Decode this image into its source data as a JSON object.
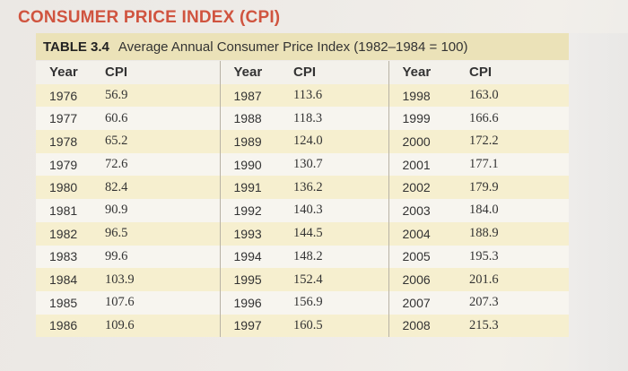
{
  "title": "CONSUMER PRICE INDEX (CPI)",
  "table": {
    "label": "TABLE 3.4",
    "caption": "Average Annual Consumer Price Index (1982–1984 = 100)",
    "headers": [
      "Year",
      "CPI",
      "Year",
      "CPI",
      "Year",
      "CPI"
    ],
    "rows": [
      [
        "1976",
        "56.9",
        "1987",
        "113.6",
        "1998",
        "163.0"
      ],
      [
        "1977",
        "60.6",
        "1988",
        "118.3",
        "1999",
        "166.6"
      ],
      [
        "1978",
        "65.2",
        "1989",
        "124.0",
        "2000",
        "172.2"
      ],
      [
        "1979",
        "72.6",
        "1990",
        "130.7",
        "2001",
        "177.1"
      ],
      [
        "1980",
        "82.4",
        "1991",
        "136.2",
        "2002",
        "179.9"
      ],
      [
        "1981",
        "90.9",
        "1992",
        "140.3",
        "2003",
        "184.0"
      ],
      [
        "1982",
        "96.5",
        "1993",
        "144.5",
        "2004",
        "188.9"
      ],
      [
        "1983",
        "99.6",
        "1994",
        "148.2",
        "2005",
        "195.3"
      ],
      [
        "1984",
        "103.9",
        "1995",
        "152.4",
        "2006",
        "201.6"
      ],
      [
        "1985",
        "107.6",
        "1996",
        "156.9",
        "2007",
        "207.3"
      ],
      [
        "1986",
        "109.6",
        "1997",
        "160.5",
        "2008",
        "215.3"
      ]
    ]
  }
}
